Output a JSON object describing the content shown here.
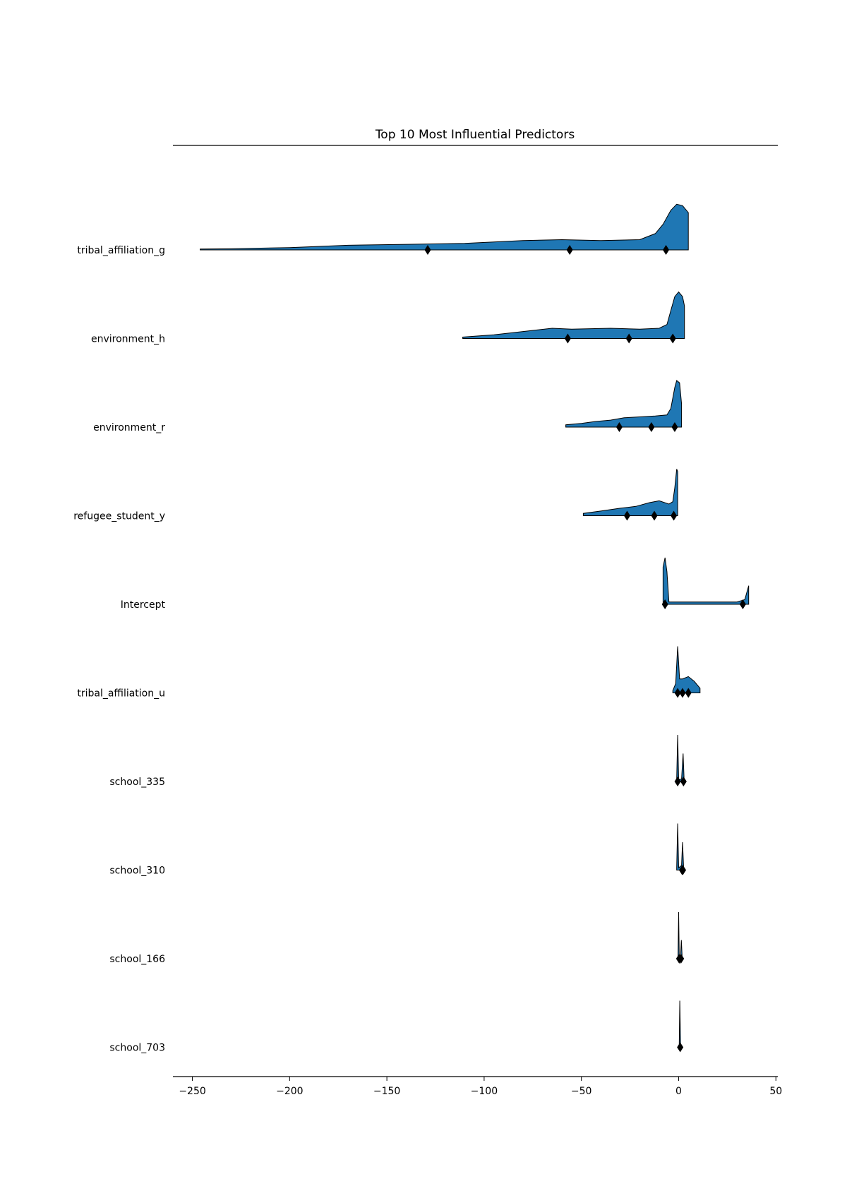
{
  "chart_data": {
    "type": "ridgeline",
    "title": "Top 10 Most Influential Predictors",
    "xlabel": "",
    "ylabel": "",
    "xlim": [
      -260,
      51
    ],
    "xticks": [
      -250,
      -200,
      -150,
      -100,
      -50,
      0,
      50
    ],
    "xtick_labels": [
      "−250",
      "−200",
      "−150",
      "−100",
      "−50",
      "0",
      "50"
    ],
    "grid": false,
    "fill_color": "#1f77b4",
    "series": [
      {
        "name": "tribal_affiliation_g",
        "density": [
          [
            -246,
            0.02
          ],
          [
            -230,
            0.025
          ],
          [
            -200,
            0.05
          ],
          [
            -170,
            0.1
          ],
          [
            -140,
            0.12
          ],
          [
            -110,
            0.14
          ],
          [
            -80,
            0.2
          ],
          [
            -60,
            0.22
          ],
          [
            -40,
            0.2
          ],
          [
            -20,
            0.22
          ],
          [
            -12,
            0.35
          ],
          [
            -8,
            0.55
          ],
          [
            -4,
            0.85
          ],
          [
            -1,
            0.98
          ],
          [
            2,
            0.95
          ],
          [
            5,
            0.8
          ]
        ],
        "markers": [
          -129,
          -56,
          -6.5
        ]
      },
      {
        "name": "environment_h",
        "density": [
          [
            -111,
            0.03
          ],
          [
            -95,
            0.08
          ],
          [
            -80,
            0.15
          ],
          [
            -65,
            0.22
          ],
          [
            -55,
            0.2
          ],
          [
            -35,
            0.22
          ],
          [
            -20,
            0.2
          ],
          [
            -10,
            0.22
          ],
          [
            -6,
            0.3
          ],
          [
            -4,
            0.6
          ],
          [
            -2,
            0.9
          ],
          [
            0,
            1.0
          ],
          [
            2,
            0.9
          ],
          [
            3,
            0.7
          ]
        ],
        "markers": [
          -57,
          -25.5,
          -3
        ]
      },
      {
        "name": "environment_r",
        "density": [
          [
            -58,
            0.05
          ],
          [
            -50,
            0.08
          ],
          [
            -43,
            0.12
          ],
          [
            -35,
            0.15
          ],
          [
            -28,
            0.2
          ],
          [
            -20,
            0.22
          ],
          [
            -12,
            0.24
          ],
          [
            -6,
            0.26
          ],
          [
            -4,
            0.4
          ],
          [
            -2,
            0.85
          ],
          [
            -1,
            1.0
          ],
          [
            0.5,
            0.95
          ],
          [
            1.5,
            0.5
          ]
        ],
        "markers": [
          -30.5,
          -14,
          -2
        ]
      },
      {
        "name": "refugee_student_y",
        "density": [
          [
            -49,
            0.05
          ],
          [
            -40,
            0.1
          ],
          [
            -30,
            0.16
          ],
          [
            -22,
            0.2
          ],
          [
            -15,
            0.28
          ],
          [
            -10,
            0.32
          ],
          [
            -5,
            0.25
          ],
          [
            -3,
            0.3
          ],
          [
            -2,
            0.6
          ],
          [
            -1,
            1.0
          ],
          [
            -0.5,
            0.95
          ]
        ],
        "markers": [
          -26.5,
          -12.5,
          -2.5
        ]
      },
      {
        "name": "Intercept",
        "density": [
          [
            -8,
            0.8
          ],
          [
            -7,
            1.0
          ],
          [
            -6,
            0.7
          ],
          [
            -5,
            0.05
          ],
          [
            30,
            0.05
          ],
          [
            34,
            0.1
          ],
          [
            36,
            0.4
          ]
        ],
        "markers": [
          -7,
          33
        ]
      },
      {
        "name": "tribal_affiliation_u",
        "density": [
          [
            -3,
            0.05
          ],
          [
            -1.5,
            0.2
          ],
          [
            -0.5,
            1.0
          ],
          [
            0.5,
            0.3
          ],
          [
            2,
            0.3
          ],
          [
            5,
            0.35
          ],
          [
            8,
            0.25
          ],
          [
            11,
            0.1
          ]
        ],
        "markers": [
          -0.5,
          2,
          5
        ]
      },
      {
        "name": "school_335",
        "density": [
          [
            -1,
            0.05
          ],
          [
            -0.5,
            1.0
          ],
          [
            0,
            0.05
          ],
          [
            1.5,
            0.05
          ],
          [
            2.3,
            0.6
          ],
          [
            2.8,
            0.05
          ]
        ],
        "markers": [
          -0.5,
          2.5
        ]
      },
      {
        "name": "school_310",
        "density": [
          [
            -1,
            0.05
          ],
          [
            -0.5,
            1.0
          ],
          [
            0,
            0.05
          ],
          [
            1.5,
            0.1
          ],
          [
            2,
            0.6
          ],
          [
            2.5,
            0.1
          ]
        ],
        "markers": [
          1.8,
          2.2
        ]
      },
      {
        "name": "school_166",
        "density": [
          [
            -0.3,
            0.05
          ],
          [
            0,
            1.0
          ],
          [
            0.3,
            0.05
          ],
          [
            1,
            0.05
          ],
          [
            1.4,
            0.4
          ],
          [
            1.8,
            0.05
          ]
        ],
        "markers": [
          0.3,
          1.2
        ]
      },
      {
        "name": "school_703",
        "density": [
          [
            0.3,
            0.05
          ],
          [
            0.6,
            1.0
          ],
          [
            1.0,
            0.05
          ]
        ],
        "markers": [
          0.8
        ]
      }
    ]
  }
}
